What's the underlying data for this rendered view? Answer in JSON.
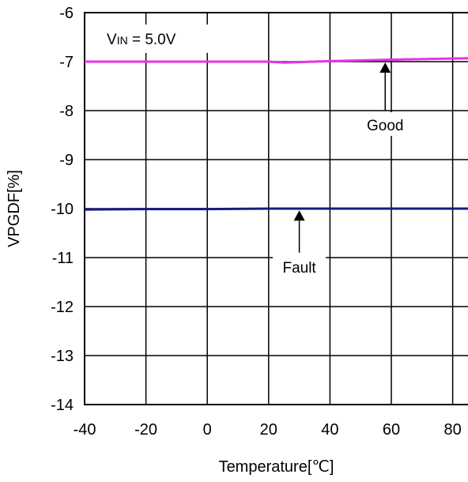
{
  "chart_data": {
    "type": "line",
    "title": "",
    "xlabel": "Temperature[℃]",
    "ylabel": "VPGDF[%]",
    "xlim": [
      -40,
      85
    ],
    "ylim": [
      -14,
      -6
    ],
    "x_ticks": [
      -40,
      -20,
      0,
      20,
      40,
      60,
      80
    ],
    "y_ticks": [
      -6,
      -7,
      -8,
      -9,
      -10,
      -11,
      -12,
      -13,
      -14
    ],
    "x_tick_labels": [
      "-40",
      "-20",
      "0",
      "20",
      "40",
      "60",
      "80"
    ],
    "y_tick_labels": [
      "-6",
      "-7",
      "-8",
      "-9",
      "-10",
      "-11",
      "-12",
      "-13",
      "-14"
    ],
    "grid": true,
    "legend_box": {
      "prefix": "V",
      "subscript": "IN",
      "suffix": " = 5.0V"
    },
    "series": [
      {
        "color": "#e633e6",
        "x": [
          -40,
          -20,
          0,
          20,
          25,
          40,
          60,
          85
        ],
        "y": [
          -7.0,
          -7.0,
          -7.0,
          -7.0,
          -7.02,
          -6.99,
          -6.96,
          -6.93
        ]
      },
      {
        "color": "#1a1a80",
        "x": [
          -40,
          -20,
          0,
          20,
          25,
          40,
          60,
          85
        ],
        "y": [
          -10.02,
          -10.01,
          -10.01,
          -10.0,
          -10.0,
          -10.0,
          -10.0,
          -10.0
        ]
      }
    ],
    "annotations": [
      {
        "text": "Good",
        "arrow_x": 58,
        "arrow_from_y": -8.0,
        "arrow_to_y": -7.0
      },
      {
        "text": "Fault",
        "arrow_x": 30,
        "arrow_from_y": -10.9,
        "arrow_to_y": -10.02
      }
    ]
  }
}
